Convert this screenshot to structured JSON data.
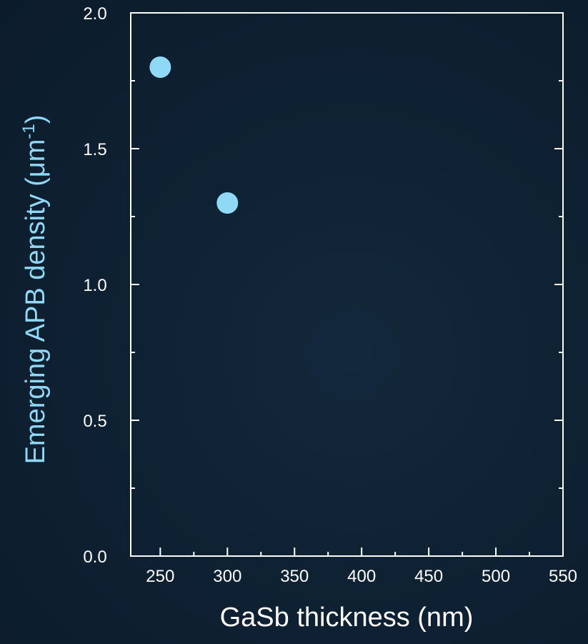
{
  "chart_data": {
    "type": "scatter",
    "xlabel": "GaSb thickness (nm)",
    "ylabel_main": "Emerging APB density (μm",
    "ylabel_sup": "-1",
    "ylabel_close": ")",
    "xlim": [
      228,
      550
    ],
    "ylim": [
      0,
      2.0
    ],
    "x_ticks": [
      250,
      300,
      350,
      400,
      450,
      500,
      550
    ],
    "x_tick_labels": [
      "250",
      "300",
      "350",
      "400",
      "450",
      "500",
      "550"
    ],
    "y_ticks": [
      0,
      0.5,
      1.0,
      1.5,
      2.0
    ],
    "y_tick_labels": [
      "0.0",
      "0.5",
      "1.0",
      "1.5",
      "2.0"
    ],
    "x_minor_ticks": [
      275,
      325,
      375,
      425,
      475,
      525
    ],
    "y_minor_ticks": [
      0.25,
      0.75,
      1.25,
      1.75
    ],
    "points": [
      {
        "x": 250,
        "y": 1.8
      },
      {
        "x": 300,
        "y": 1.3
      }
    ],
    "grid": false,
    "colors": {
      "axis": "#ffffff",
      "marker": "#8fd9f7",
      "ylabel": "#8fd9f7"
    }
  }
}
